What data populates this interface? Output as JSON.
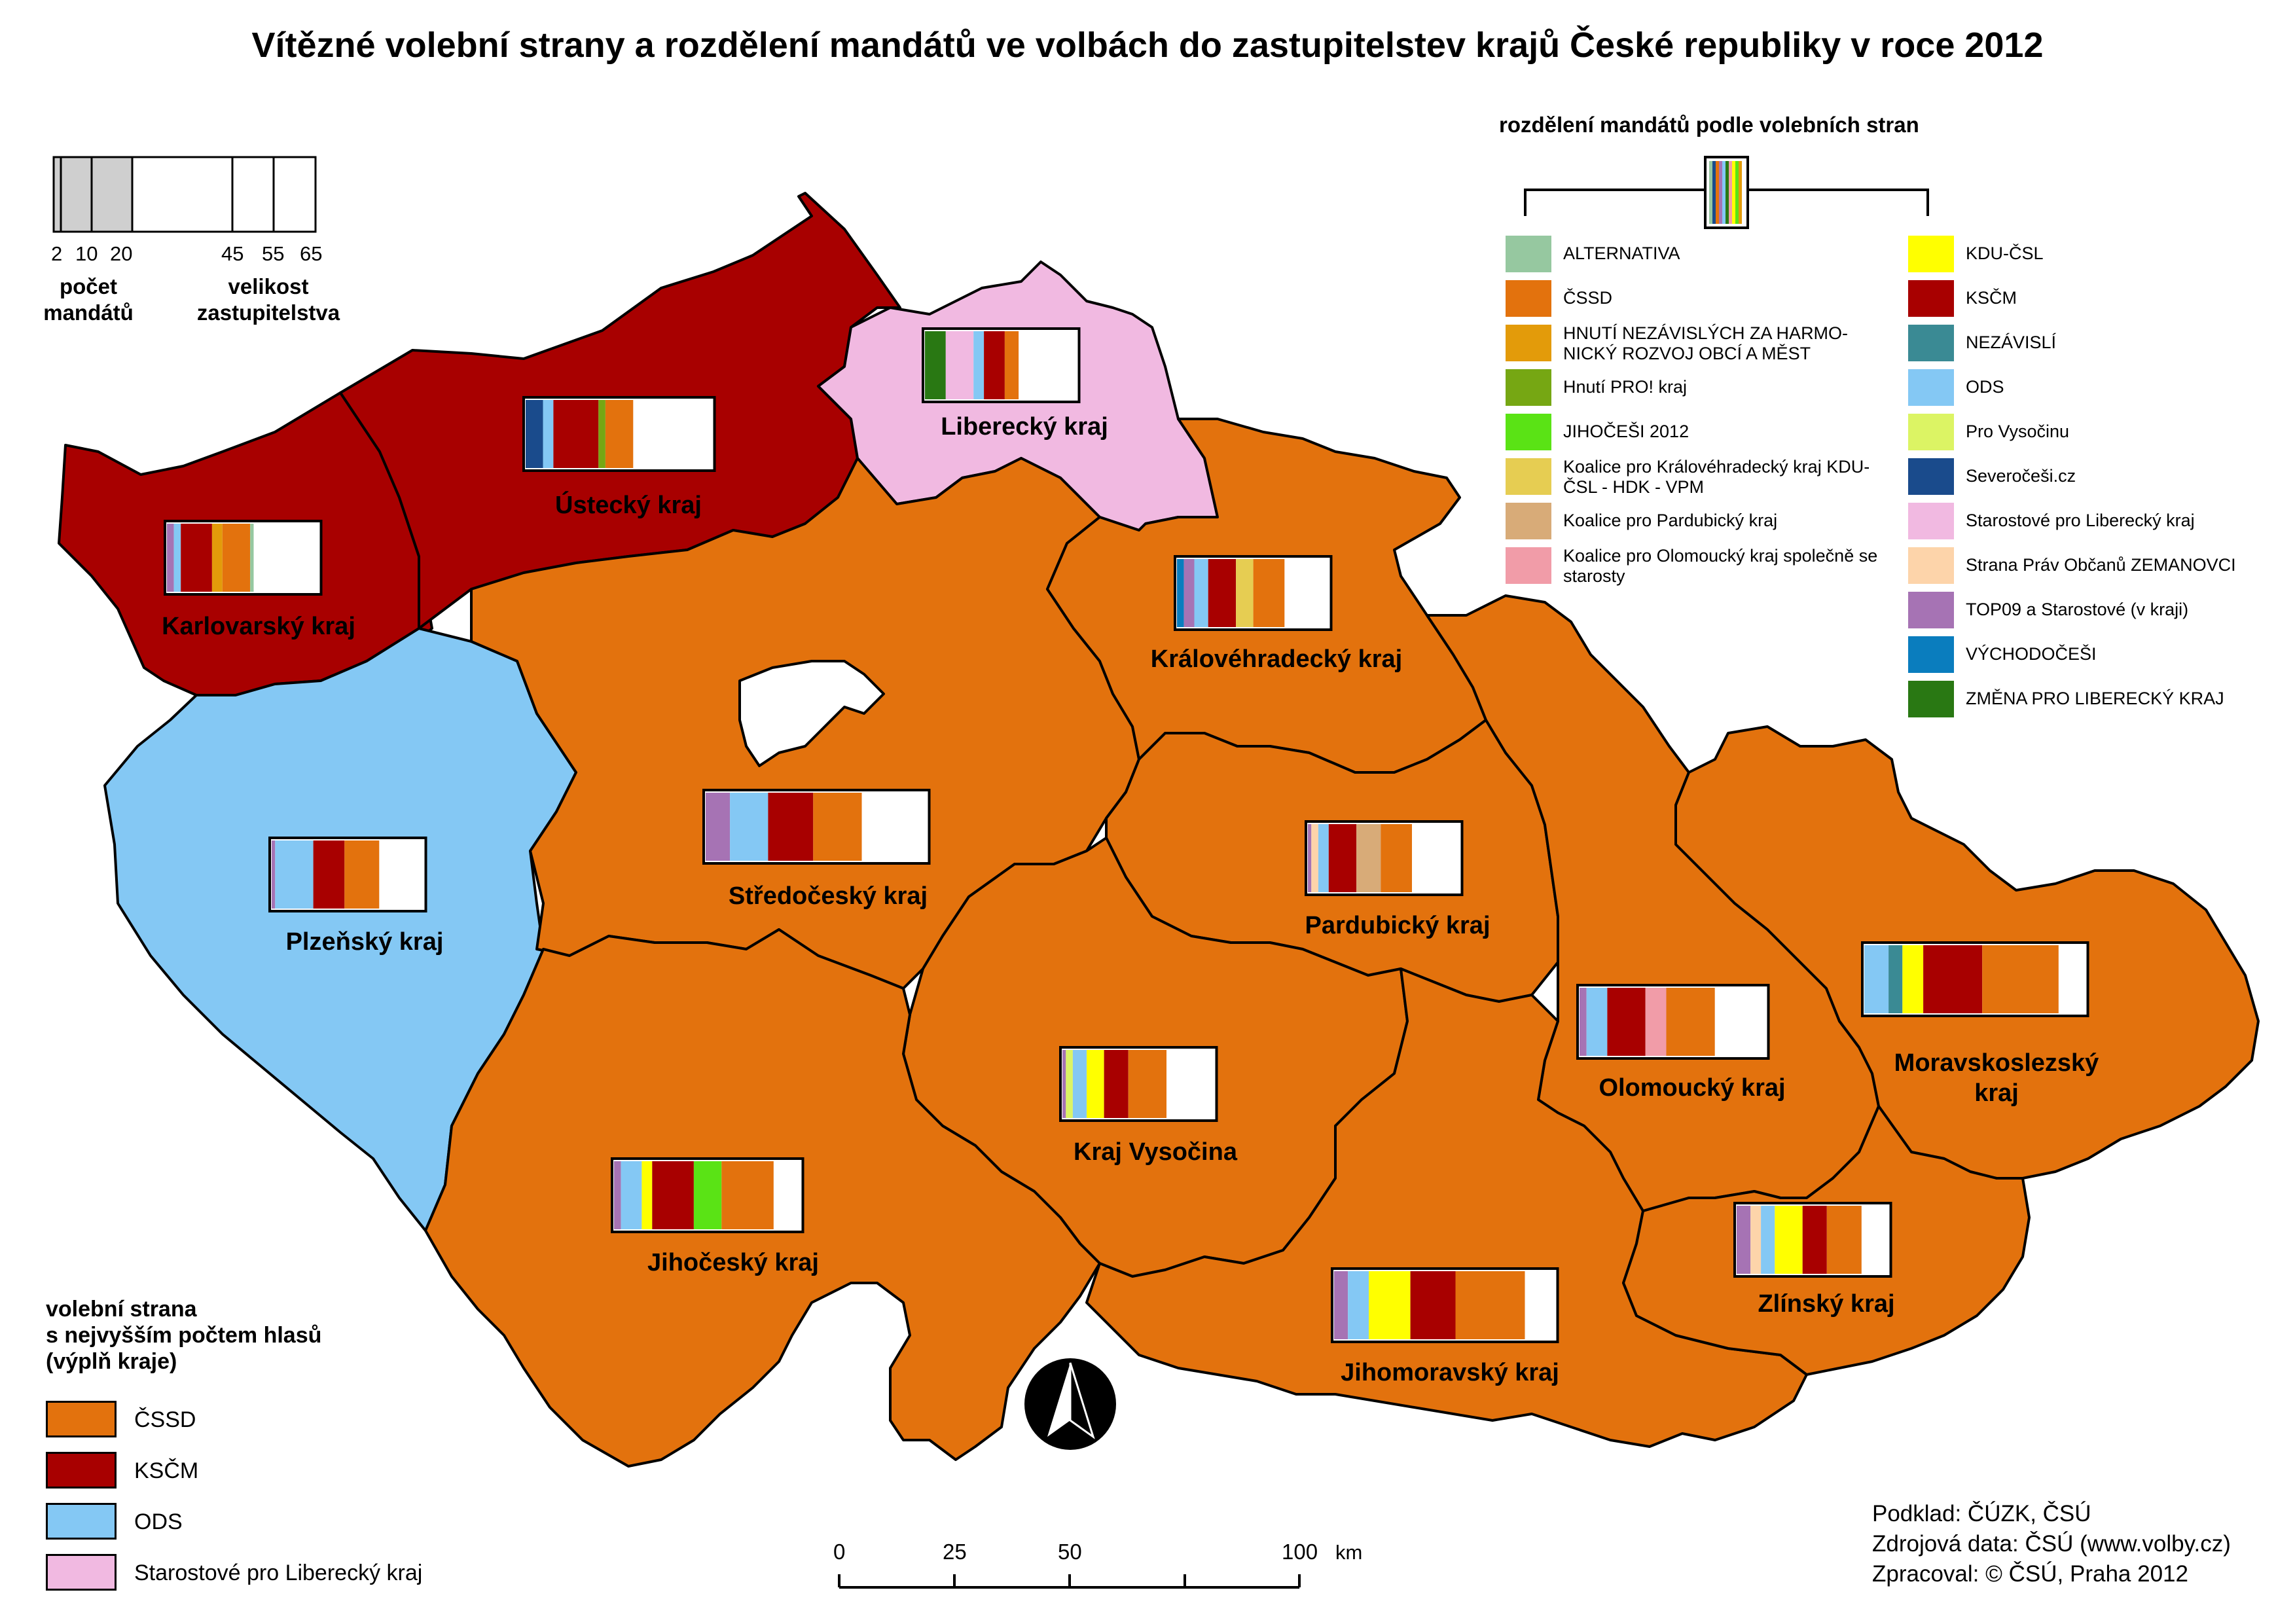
{
  "title": "Vítězné volební strany a rozdělení mandátů ve volbách do zastupitelstev krajů České republiky v roce 2012",
  "colors": {
    "cssd": "#e3720d",
    "kscm": "#a80000",
    "ods": "#84c8f4",
    "starostove_lk": "#f1b9e1",
    "praha": "#ffffff",
    "border": "#000000"
  },
  "mandate_legend": {
    "title": "rozdělení mandátů podle volebních stran",
    "parties": [
      {
        "label": "ALTERNATIVA",
        "color": "#96c8a0"
      },
      {
        "label": "ČSSD",
        "color": "#e3720d"
      },
      {
        "label": "HNUTÍ NEZÁVISLÝCH ZA HARMO-NICKÝ ROZVOJ OBCÍ A MĚST",
        "color": "#e39b0a"
      },
      {
        "label": "Hnutí PRO! kraj",
        "color": "#76a713"
      },
      {
        "label": "JIHOČEŠI 2012",
        "color": "#5ae315"
      },
      {
        "label": "Koalice pro Královéhradecký kraj KDU-ČSL - HDK - VPM",
        "color": "#e6cd52"
      },
      {
        "label": "Koalice pro Pardubický kraj",
        "color": "#d8ab78"
      },
      {
        "label": "Koalice pro Olomoucký kraj společně se starosty",
        "color": "#f19ca8"
      },
      {
        "label": "KDU-ČSL",
        "color": "#ffff00"
      },
      {
        "label": "KSČM",
        "color": "#a80000"
      },
      {
        "label": "NEZÁVISLÍ",
        "color": "#3a8a94"
      },
      {
        "label": "ODS",
        "color": "#84c8f4"
      },
      {
        "label": "Pro Vysočinu",
        "color": "#dcf464"
      },
      {
        "label": "Severočeši.cz",
        "color": "#1a4b8c"
      },
      {
        "label": "Starostové pro Liberecký kraj",
        "color": "#f1b9e1"
      },
      {
        "label": "Strana Práv Občanů ZEMANOVCI",
        "color": "#fdd4aa"
      },
      {
        "label": "TOP09 a Starostové (v kraji)",
        "color": "#a673b4"
      },
      {
        "label": "VÝCHODOČEŠI",
        "color": "#0a7dbe"
      },
      {
        "label": "ZMĚNA PRO LIBERECKÝ KRAJ",
        "color": "#297813"
      }
    ]
  },
  "size_legend": {
    "mandate_ticks": [
      "2",
      "10",
      "20"
    ],
    "size_ticks": [
      "45",
      "55",
      "65"
    ],
    "mandates_caption": "počet mandátů",
    "size_caption": "velikost zastupitelstva"
  },
  "regions": [
    {
      "name": "Karlovarský kraj",
      "fill": "kscm",
      "seats": 45
    },
    {
      "name": "Ústecký kraj",
      "fill": "kscm",
      "seats": 55
    },
    {
      "name": "Liberecký kraj",
      "fill": "starostove_lk",
      "seats": 45
    },
    {
      "name": "Plzeňský kraj",
      "fill": "ods",
      "seats": 45
    },
    {
      "name": "Středočeský kraj",
      "fill": "cssd",
      "seats": 65
    },
    {
      "name": "Královéhradecký kraj",
      "fill": "cssd",
      "seats": 45
    },
    {
      "name": "Pardubický kraj",
      "fill": "cssd",
      "seats": 45
    },
    {
      "name": "Kraj Vysočina",
      "fill": "cssd",
      "seats": 45
    },
    {
      "name": "Jihočeský kraj",
      "fill": "cssd",
      "seats": 55
    },
    {
      "name": "Olomoucký kraj",
      "fill": "cssd",
      "seats": 55
    },
    {
      "name": "Moravskoslezský kraj",
      "fill": "cssd",
      "seats": 65
    },
    {
      "name": "Jihomoravský kraj",
      "fill": "cssd",
      "seats": 65
    },
    {
      "name": "Zlínský kraj",
      "fill": "cssd",
      "seats": 45
    }
  ],
  "winner_legend": {
    "title_lines": [
      "volební strana",
      "s nejvyšším počtem hlasů",
      "(výplň kraje)"
    ],
    "items": [
      {
        "label": "ČSSD",
        "color": "#e3720d"
      },
      {
        "label": "KSČM",
        "color": "#a80000"
      },
      {
        "label": "ODS",
        "color": "#84c8f4"
      },
      {
        "label": "Starostové pro Liberecký kraj",
        "color": "#f1b9e1"
      }
    ]
  },
  "scale": {
    "ticks": [
      "0",
      "25",
      "50",
      "100"
    ],
    "unit": "km"
  },
  "credits": [
    "Podklad: ČÚZK, ČSÚ",
    "Zdrojová data: ČSÚ (www.volby.cz)",
    "Zpracoval: © ČSÚ, Praha 2012"
  ]
}
